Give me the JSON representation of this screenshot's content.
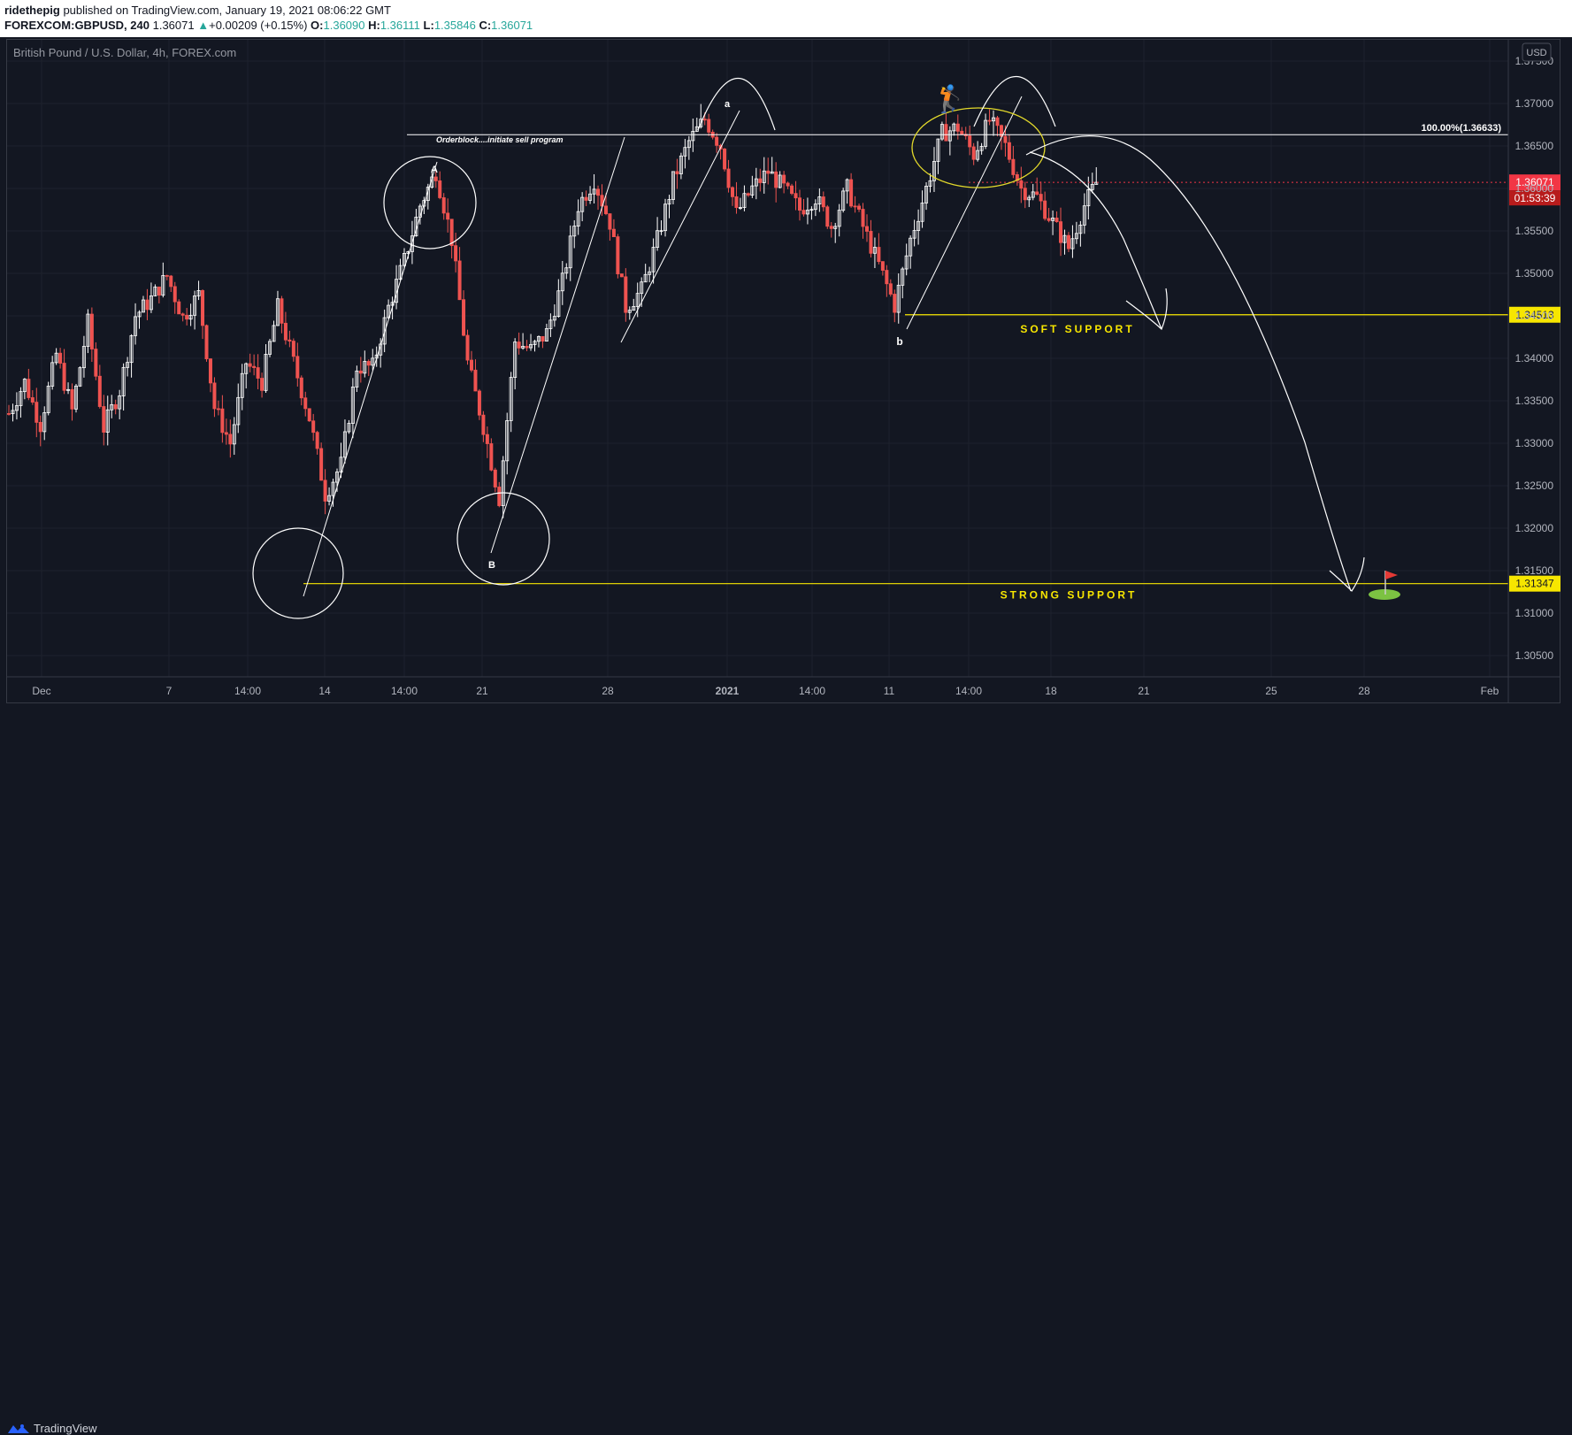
{
  "header": {
    "author": "ridethepig",
    "published_text": " published on TradingView.com, January 19, 2021 08:06:22 GMT",
    "symbol": "FOREXCOM:GBPUSD, 240",
    "last": "1.36071",
    "change_arrow": "▲",
    "change": "+0.00209 (+0.15%)",
    "o_label": "O:",
    "o_value": "1.36090",
    "h_label": "H:",
    "h_value": "1.36111",
    "l_label": "L:",
    "l_value": "1.35846",
    "c_label": "C:",
    "c_value": "1.36071"
  },
  "chart_title": "British Pound / U.S. Dollar, 4h, FOREX.com",
  "currency_badge": "USD",
  "footer": {
    "brand": "TradingView",
    "logo_icon": "tradingview-logo-icon"
  },
  "colors": {
    "up": "#ffffff",
    "down": "#ef5350",
    "support": "#f7e600",
    "background": "#131722",
    "price_tag": "#f23645"
  },
  "chart_data": {
    "type": "candlestick",
    "title": "British Pound / U.S. Dollar, 4h, FOREX.com",
    "ylim": [
      1.3025,
      1.3775
    ],
    "y_ticks": [
      "1.37500",
      "1.37000",
      "1.36500",
      "1.36000",
      "1.35500",
      "1.35000",
      "1.34500",
      "1.34000",
      "1.33500",
      "1.33000",
      "1.32500",
      "1.32000",
      "1.31500",
      "1.31000",
      "1.30500"
    ],
    "x_ticks": [
      "Dec",
      "7",
      "14:00",
      "14",
      "14:00",
      "21",
      "28",
      "2021",
      "14:00",
      "11",
      "14:00",
      "18",
      "21",
      "25",
      "28",
      "Feb"
    ],
    "x_tick_bold": "2021",
    "price_path": [
      [
        0,
        1.3335
      ],
      [
        4,
        1.3372
      ],
      [
        8,
        1.3322
      ],
      [
        12,
        1.3405
      ],
      [
        16,
        1.3338
      ],
      [
        20,
        1.3442
      ],
      [
        24,
        1.3318
      ],
      [
        28,
        1.3362
      ],
      [
        32,
        1.345
      ],
      [
        36,
        1.347
      ],
      [
        40,
        1.3497
      ],
      [
        44,
        1.3448
      ],
      [
        48,
        1.3475
      ],
      [
        52,
        1.3342
      ],
      [
        56,
        1.33
      ],
      [
        60,
        1.3395
      ],
      [
        64,
        1.3372
      ],
      [
        68,
        1.346
      ],
      [
        72,
        1.3395
      ],
      [
        76,
        1.333
      ],
      [
        80,
        1.324
      ],
      [
        84,
        1.3275
      ],
      [
        88,
        1.339
      ],
      [
        92,
        1.339
      ],
      [
        96,
        1.346
      ],
      [
        100,
        1.3515
      ],
      [
        104,
        1.358
      ],
      [
        108,
        1.362
      ],
      [
        112,
        1.354
      ],
      [
        116,
        1.3395
      ],
      [
        120,
        1.332
      ],
      [
        124,
        1.3235
      ],
      [
        128,
        1.342
      ],
      [
        132,
        1.341
      ],
      [
        136,
        1.343
      ],
      [
        140,
        1.349
      ],
      [
        144,
        1.358
      ],
      [
        148,
        1.361
      ],
      [
        152,
        1.356
      ],
      [
        156,
        1.346
      ],
      [
        160,
        1.348
      ],
      [
        164,
        1.354
      ],
      [
        168,
        1.361
      ],
      [
        172,
        1.3655
      ],
      [
        176,
        1.3682
      ],
      [
        180,
        1.365
      ],
      [
        184,
        1.357
      ],
      [
        188,
        1.36
      ],
      [
        192,
        1.362
      ],
      [
        196,
        1.36
      ],
      [
        200,
        1.3575
      ],
      [
        204,
        1.359
      ],
      [
        208,
        1.3555
      ],
      [
        212,
        1.36
      ],
      [
        216,
        1.3555
      ],
      [
        220,
        1.351
      ],
      [
        224,
        1.3462
      ],
      [
        228,
        1.354
      ],
      [
        232,
        1.36
      ],
      [
        236,
        1.3665
      ],
      [
        240,
        1.3672
      ],
      [
        244,
        1.364
      ],
      [
        248,
        1.368
      ],
      [
        252,
        1.365
      ],
      [
        256,
        1.36
      ],
      [
        260,
        1.359
      ],
      [
        264,
        1.356
      ],
      [
        268,
        1.353
      ],
      [
        272,
        1.358
      ],
      [
        275,
        1.3607
      ]
    ],
    "last_price": "1.36071",
    "countdown": "01:53:39",
    "levels": [
      {
        "label": "SOFT  SUPPORT",
        "value": "1.34513"
      },
      {
        "label": "STRONG  SUPPORT",
        "value": "1.31347"
      },
      {
        "label": "100.00%(1.36633)",
        "value": "1.36633"
      }
    ],
    "annotations": [
      "Orderblock....initiate sell program",
      "A",
      "B",
      "a",
      "b"
    ],
    "emoji_golfer": "🏌️",
    "emoji_flag": "⛳"
  }
}
